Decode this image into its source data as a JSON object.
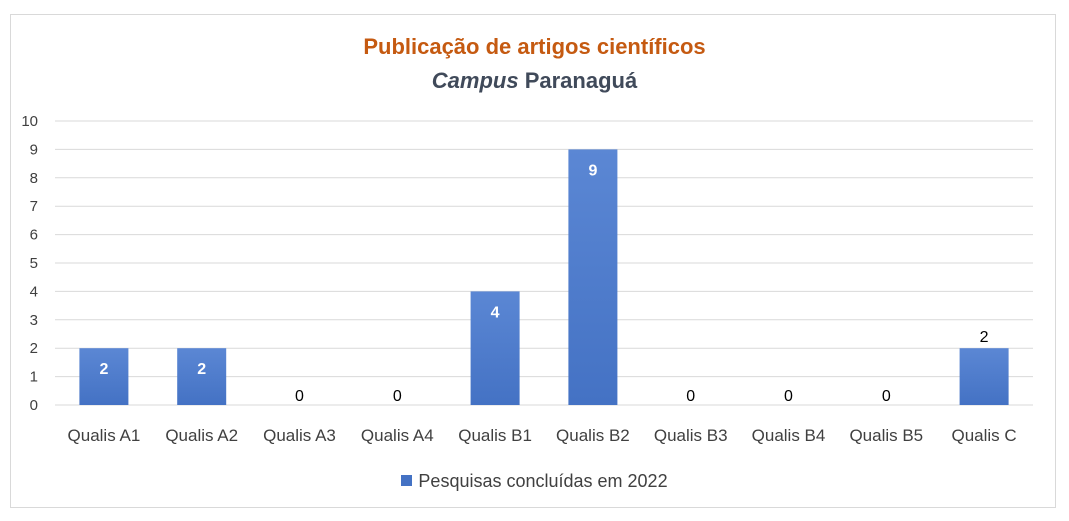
{
  "title_line1": "Publicação de artigos científicos",
  "title_line2_italic": "Campus",
  "title_line2_rest": " Paranaguá",
  "colors": {
    "bar": "#4472c4",
    "bar_top": "#5b87d4",
    "grid": "#d9d9d9",
    "text": "#404040",
    "title": "#c55a11"
  },
  "chart_data": {
    "type": "bar",
    "categories": [
      "Qualis A1",
      "Qualis A2",
      "Qualis A3",
      "Qualis A4",
      "Qualis B1",
      "Qualis B2",
      "Qualis B3",
      "Qualis B4",
      "Qualis B5",
      "Qualis C"
    ],
    "series": [
      {
        "name": "Pesquisas concluídas em 2022",
        "values": [
          2,
          2,
          0,
          0,
          4,
          9,
          0,
          0,
          0,
          2
        ]
      }
    ],
    "yticks": [
      0,
      1,
      2,
      3,
      4,
      5,
      6,
      7,
      8,
      9,
      10
    ],
    "ylim": [
      0,
      10
    ],
    "grid": true,
    "legend": "bottom"
  }
}
